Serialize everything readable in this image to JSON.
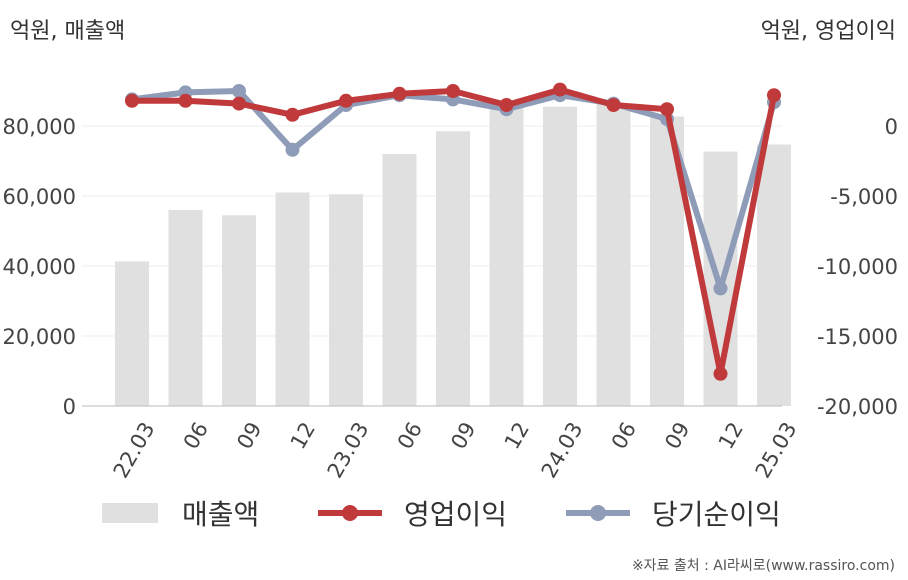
{
  "chart_data": {
    "type": "bar-line-combo",
    "left_unit": "억원, 매출액",
    "right_unit": "억원, 영업이익",
    "categories": [
      "22.03",
      "06",
      "09",
      "12",
      "23.03",
      "06",
      "09",
      "12",
      "24.03",
      "06",
      "09",
      "12",
      "25.03"
    ],
    "left_axis": {
      "ticks": [
        0,
        20000,
        40000,
        60000,
        80000
      ],
      "tick_labels": [
        "0",
        "20,000",
        "40,000",
        "60,000",
        "80,000"
      ],
      "range": [
        0,
        96000
      ]
    },
    "right_axis": {
      "ticks": [
        0,
        -5000,
        -10000,
        -15000,
        -20000
      ],
      "tick_labels": [
        "0",
        "-5,000",
        "-10,000",
        "-15,000",
        "-20,000"
      ],
      "range": [
        -20000,
        4000
      ]
    },
    "series": [
      {
        "name": "매출액",
        "type": "bar",
        "axis": "left",
        "color": "#e0e0e0",
        "values": [
          41300,
          56000,
          54500,
          61000,
          60500,
          72000,
          78500,
          86000,
          85500,
          86500,
          82700,
          72700,
          74700
        ]
      },
      {
        "name": "영업이익",
        "type": "line",
        "axis": "right",
        "color": "#c0393b",
        "values": [
          1800,
          1800,
          1600,
          800,
          1800,
          2300,
          2500,
          1500,
          2600,
          1500,
          1200,
          -17700,
          2200
        ]
      },
      {
        "name": "당기순이익",
        "type": "line",
        "axis": "right",
        "color": "#8e9cb8",
        "values": [
          1900,
          2400,
          2500,
          -1700,
          1500,
          2200,
          1900,
          1200,
          2200,
          1600,
          500,
          -11600,
          1700
        ]
      }
    ],
    "legend_position": "bottom",
    "grid": true
  },
  "source_text": "※자료 출처 : AI라씨로(www.rassiro.com)"
}
